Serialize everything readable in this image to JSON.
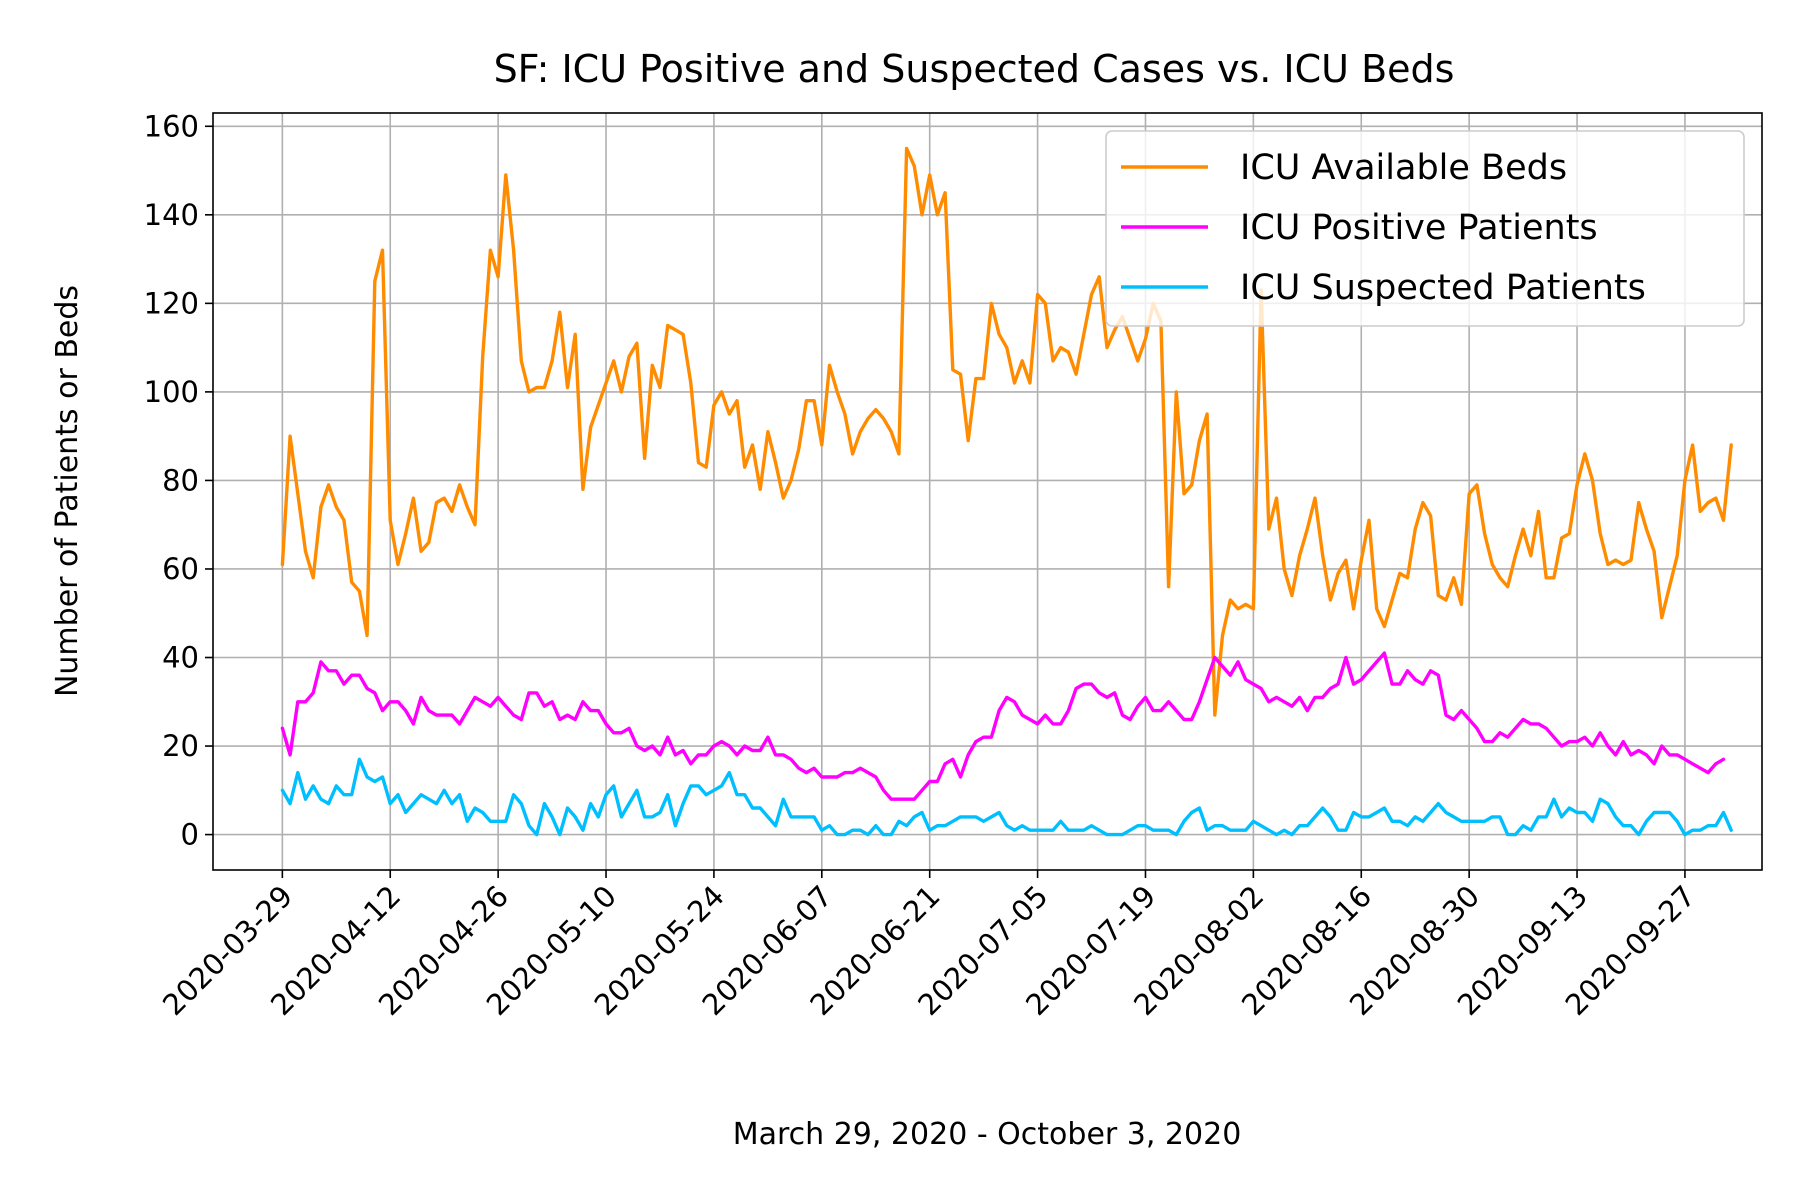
{
  "chart_data": {
    "type": "line",
    "title": "SF: ICU Positive and Suspected Cases vs. ICU Beds",
    "xlabel": "March 29, 2020 - October 3, 2020",
    "ylabel": "Number of Patients or Beds",
    "start_date": "2020-03-29",
    "x_ticks": [
      "2020-03-29",
      "2020-04-12",
      "2020-04-26",
      "2020-05-10",
      "2020-05-24",
      "2020-06-07",
      "2020-06-21",
      "2020-07-05",
      "2020-07-19",
      "2020-08-02",
      "2020-08-16",
      "2020-08-30",
      "2020-09-13",
      "2020-09-27"
    ],
    "xlim": [
      "2020-03-20",
      "2020-10-07"
    ],
    "ylim": [
      -8,
      163
    ],
    "y_ticks": [
      0,
      20,
      40,
      60,
      80,
      100,
      120,
      140,
      160
    ],
    "grid": true,
    "legend_position": "upper right",
    "series": [
      {
        "name": "ICU Available Beds",
        "color": "#ff8c00",
        "values": [
          61,
          90,
          77,
          64,
          58,
          74,
          79,
          74,
          71,
          57,
          55,
          45,
          125,
          132,
          71,
          61,
          68,
          76,
          64,
          66,
          75,
          76,
          73,
          79,
          74,
          70,
          108,
          132,
          126,
          149,
          132,
          107,
          100,
          101,
          101,
          107,
          118,
          101,
          113,
          78,
          92,
          97,
          102,
          107,
          100,
          108,
          111,
          85,
          106,
          101,
          115,
          114,
          113,
          102,
          84,
          83,
          97,
          100,
          95,
          98,
          83,
          88,
          78,
          91,
          84,
          76,
          80,
          87,
          98,
          98,
          88,
          106,
          100,
          95,
          86,
          91,
          94,
          96,
          94,
          91,
          86,
          155,
          151,
          140,
          149,
          140,
          145,
          105,
          104,
          89,
          103,
          103,
          120,
          113,
          110,
          102,
          107,
          102,
          122,
          120,
          107,
          110,
          109,
          104,
          113,
          122,
          126,
          110,
          114,
          117,
          112,
          107,
          112,
          120,
          116,
          56,
          100,
          77,
          79,
          89,
          95,
          27,
          45,
          53,
          51,
          52,
          51,
          123,
          69,
          76,
          60,
          54,
          63,
          69,
          76,
          63,
          53,
          59,
          62,
          51,
          62,
          71,
          51,
          47,
          53,
          59,
          58,
          69,
          75,
          72,
          54,
          53,
          58,
          52,
          77,
          79,
          68,
          61,
          58,
          56,
          63,
          69,
          63,
          73,
          58,
          58,
          67,
          68,
          79,
          86,
          80,
          68,
          61,
          62,
          61,
          62,
          75,
          69,
          64,
          49,
          56,
          63,
          80,
          88,
          73,
          75,
          76,
          71,
          88
        ]
      },
      {
        "name": "ICU Positive Patients",
        "color": "#ff00ff",
        "values": [
          24,
          18,
          30,
          30,
          32,
          39,
          37,
          37,
          34,
          36,
          36,
          33,
          32,
          28,
          30,
          30,
          28,
          25,
          31,
          28,
          27,
          27,
          27,
          25,
          28,
          31,
          30,
          29,
          31,
          29,
          27,
          26,
          32,
          32,
          29,
          30,
          26,
          27,
          26,
          30,
          28,
          28,
          25,
          23,
          23,
          24,
          20,
          19,
          20,
          18,
          22,
          18,
          19,
          16,
          18,
          18,
          20,
          21,
          20,
          18,
          20,
          19,
          19,
          22,
          18,
          18,
          17,
          15,
          14,
          15,
          13,
          13,
          13,
          14,
          14,
          15,
          14,
          13,
          10,
          8,
          8,
          8,
          8,
          10,
          12,
          12,
          16,
          17,
          13,
          18,
          21,
          22,
          22,
          28,
          31,
          30,
          27,
          26,
          25,
          27,
          25,
          25,
          28,
          33,
          34,
          34,
          32,
          31,
          32,
          27,
          26,
          29,
          31,
          28,
          28,
          30,
          28,
          26,
          26,
          30,
          35,
          40,
          38,
          36,
          39,
          35,
          34,
          33,
          30,
          31,
          30,
          29,
          31,
          28,
          31,
          31,
          33,
          34,
          40,
          34,
          35,
          37,
          39,
          41,
          34,
          34,
          37,
          35,
          34,
          37,
          36,
          27,
          26,
          28,
          26,
          24,
          21,
          21,
          23,
          22,
          24,
          26,
          25,
          25,
          24,
          22,
          20,
          21,
          21,
          22,
          20,
          23,
          20,
          18,
          21,
          18,
          19,
          18,
          16,
          20,
          18,
          18,
          17,
          16,
          15,
          14,
          16,
          17
        ]
      },
      {
        "name": "ICU Suspected Patients",
        "color": "#00bfff",
        "values": [
          10,
          7,
          14,
          8,
          11,
          8,
          7,
          11,
          9,
          9,
          17,
          13,
          12,
          13,
          7,
          9,
          5,
          7,
          9,
          8,
          7,
          10,
          7,
          9,
          3,
          6,
          5,
          3,
          3,
          3,
          9,
          7,
          2,
          0,
          7,
          4,
          0,
          6,
          4,
          1,
          7,
          4,
          9,
          11,
          4,
          7,
          10,
          4,
          4,
          5,
          9,
          2,
          7,
          11,
          11,
          9,
          10,
          11,
          14,
          9,
          9,
          6,
          6,
          4,
          2,
          8,
          4,
          4,
          4,
          4,
          1,
          2,
          0,
          0,
          1,
          1,
          0,
          2,
          0,
          0,
          3,
          2,
          4,
          5,
          1,
          2,
          2,
          3,
          4,
          4,
          4,
          3,
          4,
          5,
          2,
          1,
          2,
          1,
          1,
          1,
          1,
          3,
          1,
          1,
          1,
          2,
          1,
          0,
          0,
          0,
          1,
          2,
          2,
          1,
          1,
          1,
          0,
          3,
          5,
          6,
          1,
          2,
          2,
          1,
          1,
          1,
          3,
          2,
          1,
          0,
          1,
          0,
          2,
          2,
          4,
          6,
          4,
          1,
          1,
          5,
          4,
          4,
          5,
          6,
          3,
          3,
          2,
          4,
          3,
          5,
          7,
          5,
          4,
          3,
          3,
          3,
          3,
          4,
          4,
          0,
          0,
          2,
          1,
          4,
          4,
          8,
          4,
          6,
          5,
          5,
          3,
          8,
          7,
          4,
          2,
          2,
          0,
          3,
          5,
          5,
          5,
          3,
          0,
          1,
          1,
          2,
          2,
          5,
          1
        ]
      }
    ]
  }
}
